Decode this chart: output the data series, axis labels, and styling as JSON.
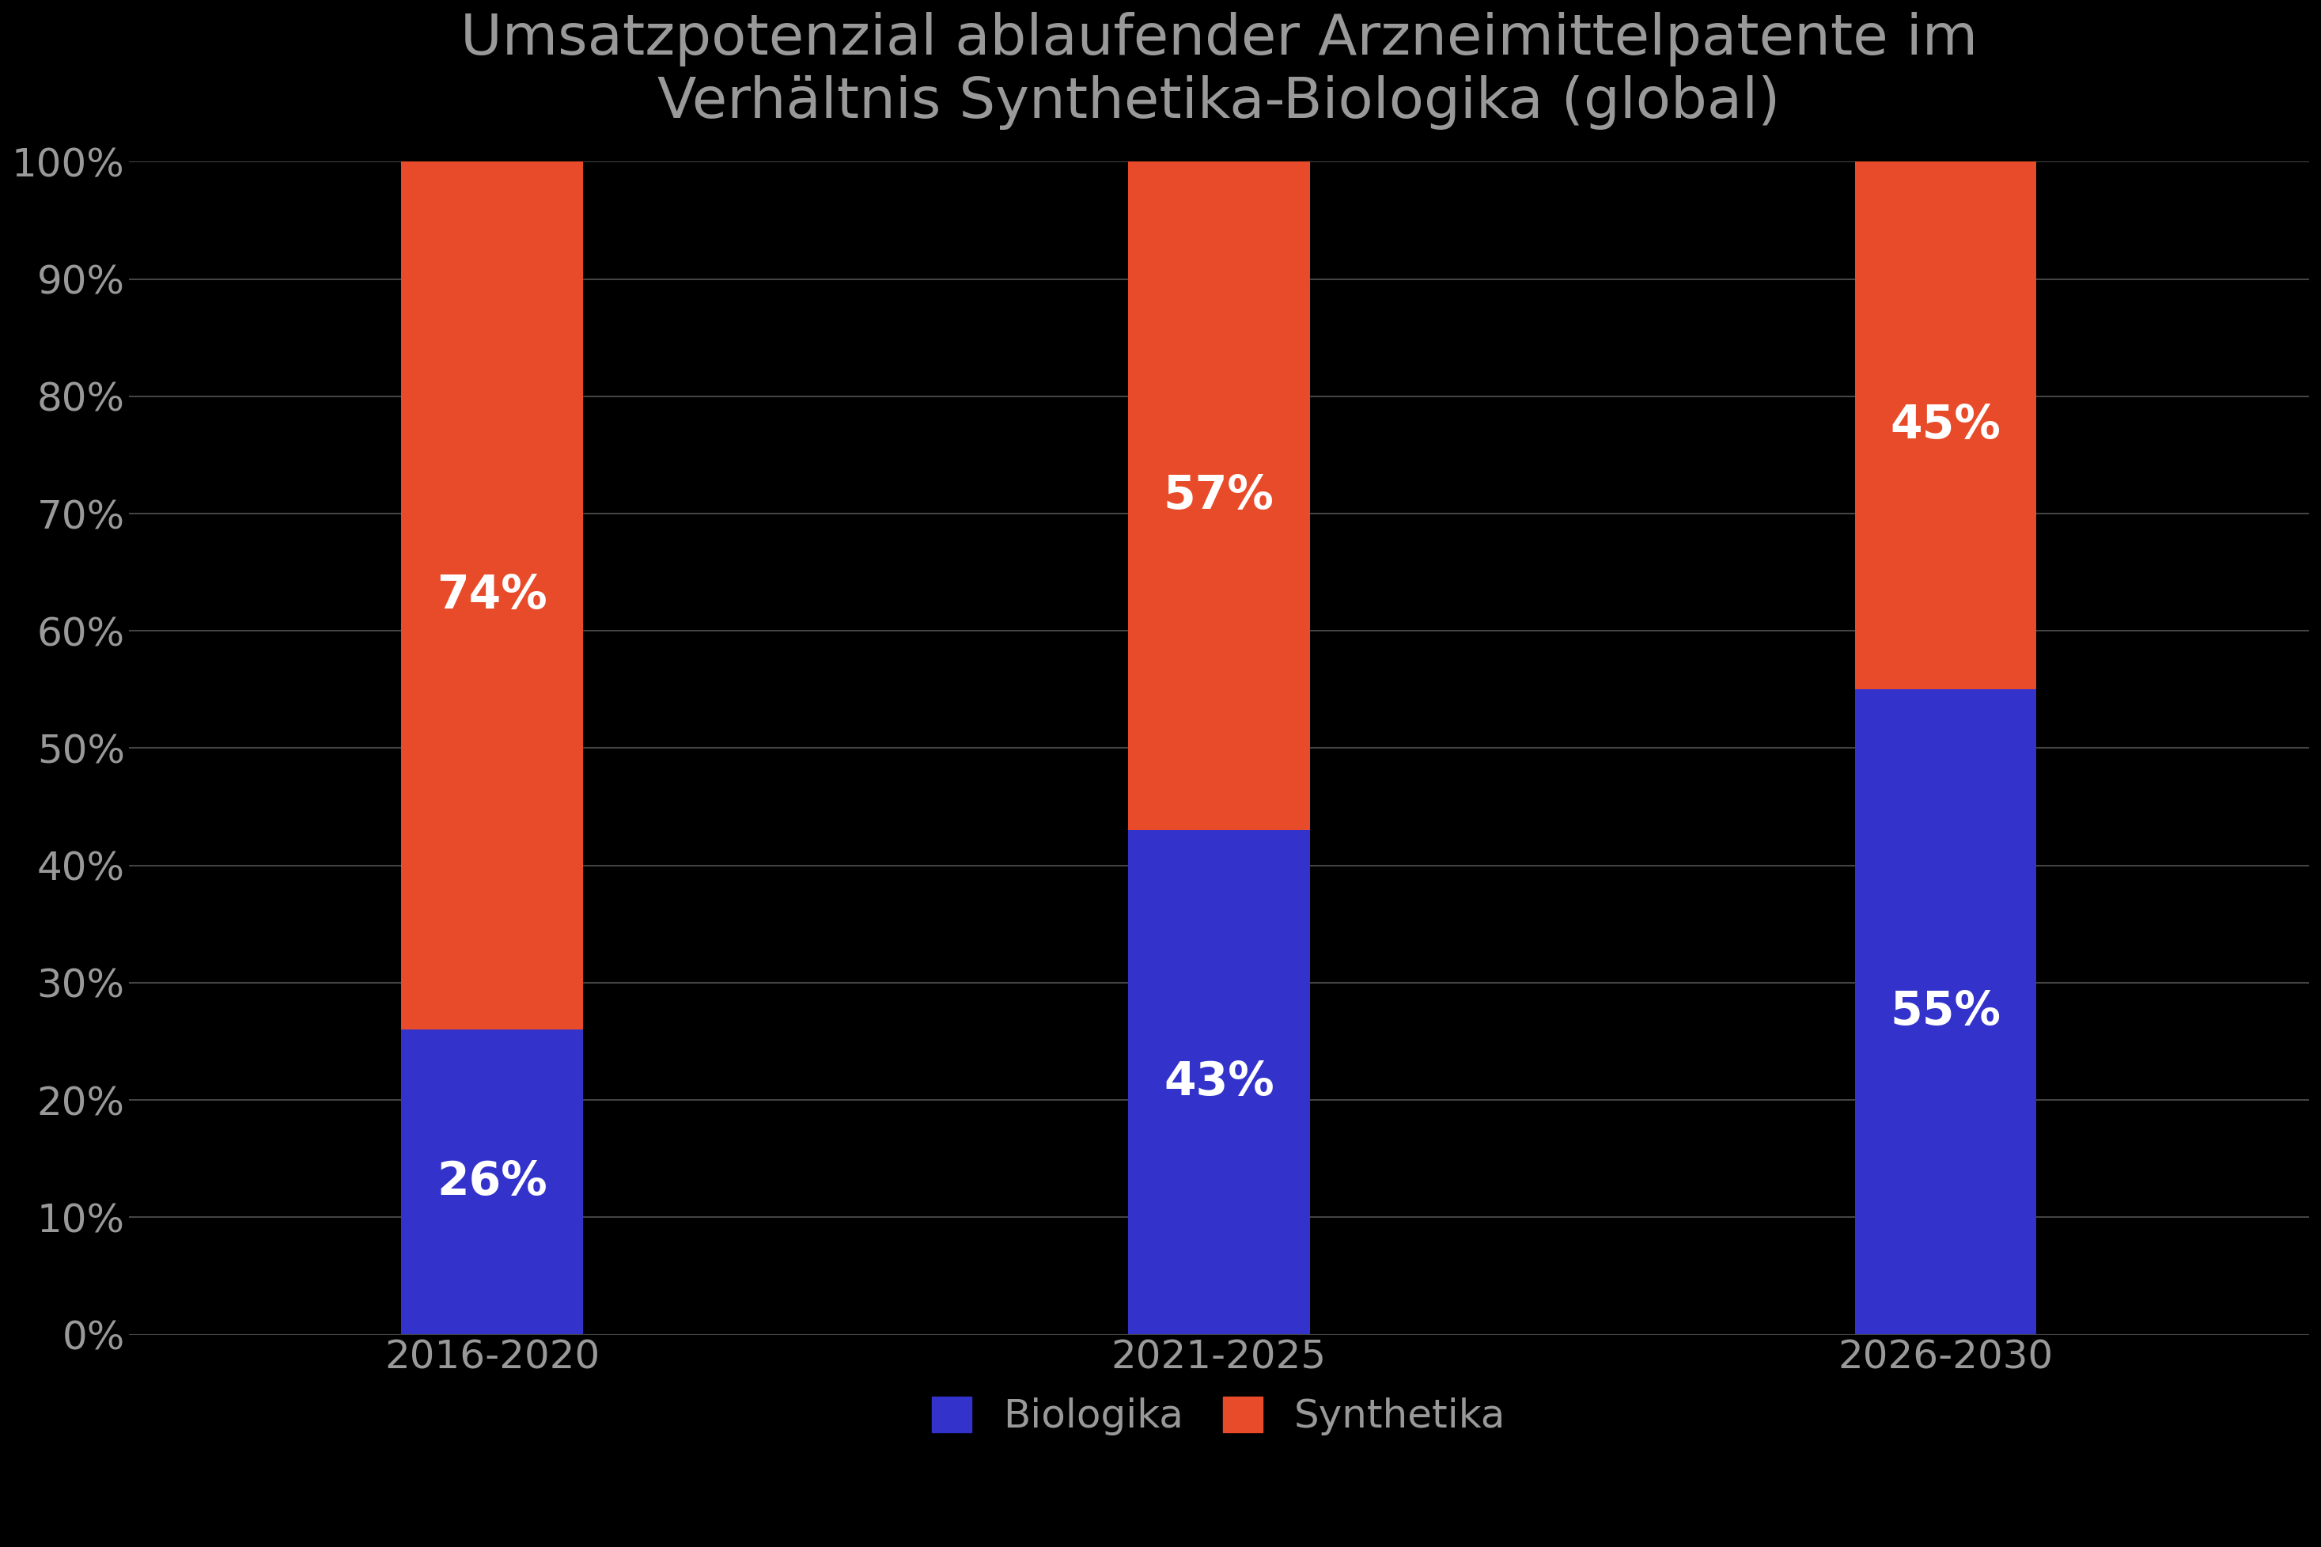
{
  "title": "Umsatzpotenzial ablaufender Arzneimittelpatente im\nVerhältnis Synthetika-Biologika (global)",
  "categories": [
    "2016-2020",
    "2021-2025",
    "2026-2030"
  ],
  "biologika": [
    26,
    43,
    55
  ],
  "synthetika": [
    74,
    57,
    45
  ],
  "biologika_color": "#3333CC",
  "synthetika_color": "#E84B2A",
  "background_color": "#000000",
  "text_color": "#999999",
  "label_color": "#ffffff",
  "title_color": "#999999",
  "grid_color": "#444444",
  "ytick_labels": [
    "0%",
    "10%",
    "20%",
    "30%",
    "40%",
    "50%",
    "60%",
    "70%",
    "80%",
    "90%",
    "100%"
  ],
  "ytick_values": [
    0,
    10,
    20,
    30,
    40,
    50,
    60,
    70,
    80,
    90,
    100
  ],
  "legend_labels": [
    "Biologika",
    "Synthetika"
  ],
  "title_fontsize": 52,
  "tick_fontsize": 36,
  "label_fontsize": 42,
  "legend_fontsize": 36,
  "bar_width": 0.25
}
